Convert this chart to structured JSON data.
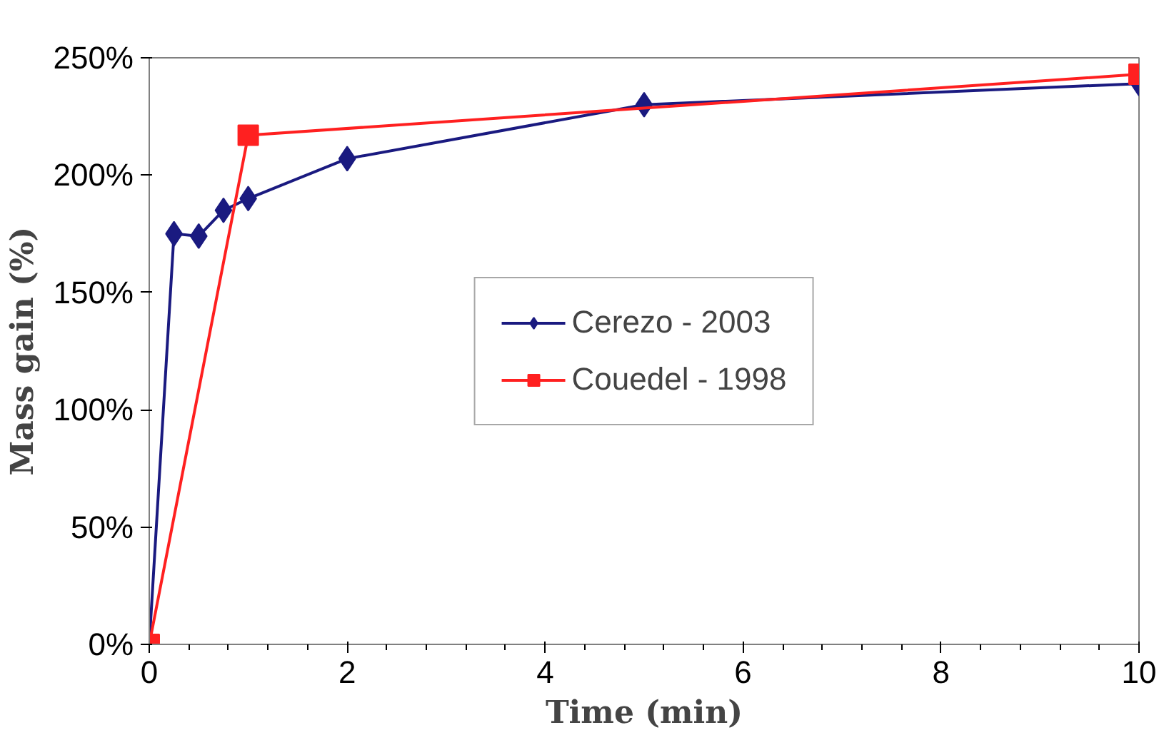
{
  "chart_data": {
    "type": "line",
    "xlabel": "Time (min)",
    "ylabel": "Mass gain (%)",
    "xlim": [
      0,
      10
    ],
    "xticks": [
      0,
      2,
      4,
      6,
      8,
      10
    ],
    "ylim": [
      0,
      250
    ],
    "yticks": [
      {
        "value": 0,
        "label": "0%"
      },
      {
        "value": 50,
        "label": "50%"
      },
      {
        "value": 100,
        "label": "100%"
      },
      {
        "value": 150,
        "label": "150%"
      },
      {
        "value": 200,
        "label": "200%"
      },
      {
        "value": 250,
        "label": "250%"
      }
    ],
    "grid": false,
    "legend": "center",
    "series": [
      {
        "name": "Cerezo - 2003",
        "color": "#1a1a80",
        "marker": "diamond",
        "x": [
          0,
          0.25,
          0.5,
          0.75,
          1,
          2,
          5,
          10
        ],
        "values": [
          0,
          175,
          174,
          185,
          190,
          207,
          230,
          239
        ]
      },
      {
        "name": "Couedel - 1998",
        "color": "#ff2020",
        "marker": "square",
        "x": [
          0,
          1,
          10
        ],
        "values": [
          0,
          217,
          243
        ]
      }
    ]
  }
}
